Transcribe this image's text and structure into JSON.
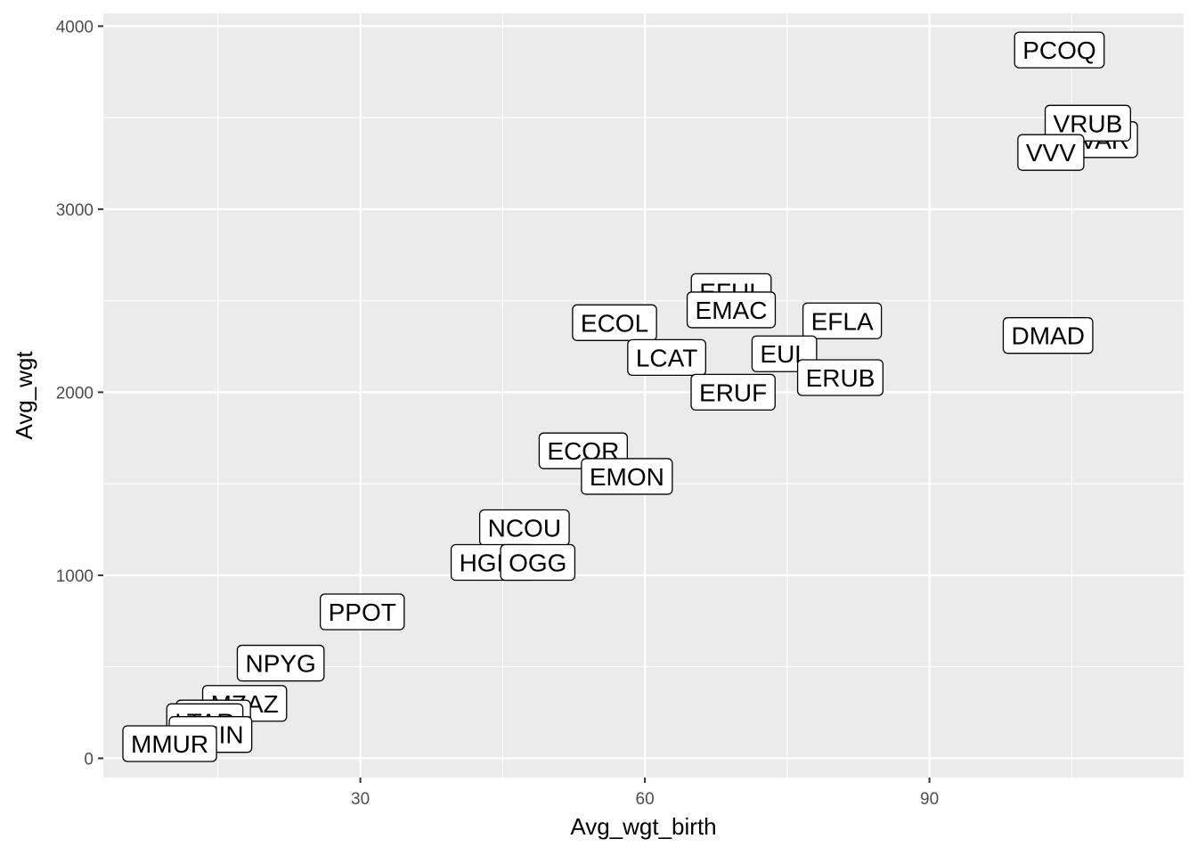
{
  "chart_data": {
    "type": "scatter",
    "xlabel": "Avg_wgt_birth",
    "ylabel": "Avg_wgt",
    "xlim": [
      2.9,
      116.8
    ],
    "ylim": [
      -105,
      4070
    ],
    "x_ticks": [
      30,
      60,
      90
    ],
    "x_tick_labels": [
      "30",
      "60",
      "90"
    ],
    "y_ticks": [
      0,
      1000,
      2000,
      3000,
      4000
    ],
    "y_tick_labels": [
      "0",
      "1000",
      "2000",
      "3000",
      "4000"
    ],
    "grid": true,
    "legend": "none",
    "colors": {
      "panel": "#ebebeb",
      "grid": "#ffffff",
      "label_fill": "#ffffff",
      "label_border": "#000000"
    },
    "points": [
      {
        "label": "PCOQ",
        "x": 103.7,
        "y": 3870
      },
      {
        "label": "VVAR",
        "x": 107.6,
        "y": 3380
      },
      {
        "label": "VRUB",
        "x": 106.7,
        "y": 3470
      },
      {
        "label": "VVV",
        "x": 102.8,
        "y": 3310
      },
      {
        "label": "DMAD",
        "x": 102.5,
        "y": 2310
      },
      {
        "label": "EFUL",
        "x": 69.1,
        "y": 2550
      },
      {
        "label": "EMAC",
        "x": 69.1,
        "y": 2450
      },
      {
        "label": "EFLA",
        "x": 80.8,
        "y": 2390
      },
      {
        "label": "ECOL",
        "x": 56.8,
        "y": 2380
      },
      {
        "label": "LCAT",
        "x": 62.3,
        "y": 2190
      },
      {
        "label": "EUL",
        "x": 74.7,
        "y": 2210
      },
      {
        "label": "ERUB",
        "x": 80.6,
        "y": 2080
      },
      {
        "label": "ERUF",
        "x": 69.3,
        "y": 2000
      },
      {
        "label": "ECOR",
        "x": 53.5,
        "y": 1680
      },
      {
        "label": "EMON",
        "x": 58.1,
        "y": 1540
      },
      {
        "label": "NCOU",
        "x": 47.3,
        "y": 1260
      },
      {
        "label": "HGLA",
        "x": 44.0,
        "y": 1070
      },
      {
        "label": "OGG",
        "x": 48.7,
        "y": 1070
      },
      {
        "label": "PPOT",
        "x": 30.2,
        "y": 800
      },
      {
        "label": "NPYG",
        "x": 21.6,
        "y": 520
      },
      {
        "label": "MZAZ",
        "x": 17.8,
        "y": 300
      },
      {
        "label": "LGRI",
        "x": 14.5,
        "y": 220
      },
      {
        "label": "LTAR",
        "x": 13.6,
        "y": 200
      },
      {
        "label": "MMIN",
        "x": 14.2,
        "y": 130
      },
      {
        "label": "MMUR",
        "x": 9.9,
        "y": 80
      }
    ]
  }
}
